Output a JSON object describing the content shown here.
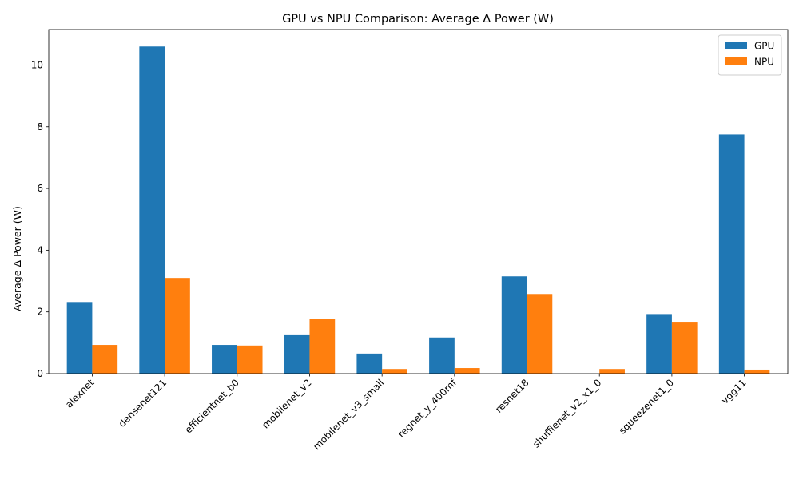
{
  "chart_data": {
    "type": "bar",
    "title": "GPU vs NPU Comparison: Average Δ Power (W)",
    "xlabel": "",
    "ylabel": "Average Δ Power (W)",
    "ylim": [
      0,
      11.15
    ],
    "yticks": [
      0,
      2,
      4,
      6,
      8,
      10
    ],
    "grid": false,
    "legend_position": "top-right",
    "categories": [
      "alexnet",
      "densenet121",
      "efficientnet_b0",
      "mobilenet_v2",
      "mobilenet_v3_small",
      "regnet_y_400mf",
      "resnet18",
      "shufflenet_v2_x1_0",
      "squeezenet1_0",
      "vgg11"
    ],
    "series": [
      {
        "name": "GPU",
        "color": "#1f77b4",
        "values": [
          2.32,
          10.6,
          0.93,
          1.27,
          0.65,
          1.17,
          3.15,
          0.0,
          1.93,
          7.75
        ]
      },
      {
        "name": "NPU",
        "color": "#ff7f0e",
        "values": [
          0.93,
          3.1,
          0.91,
          1.76,
          0.15,
          0.18,
          2.58,
          0.15,
          1.68,
          0.13
        ]
      }
    ]
  }
}
